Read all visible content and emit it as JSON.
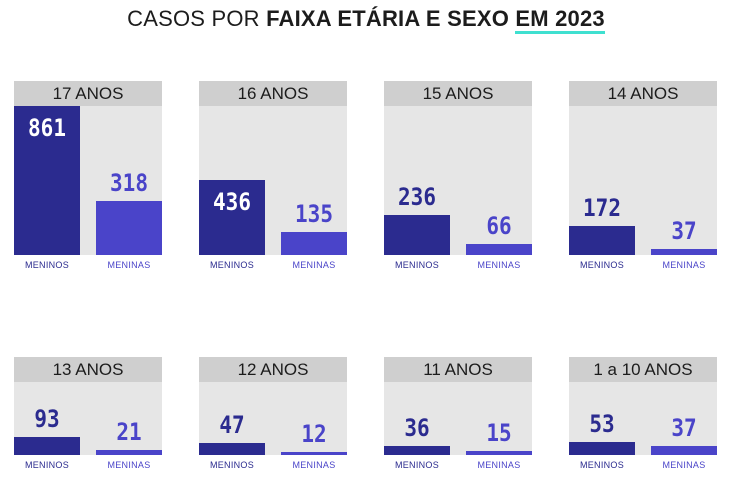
{
  "title": {
    "part1": "CASOS POR ",
    "part2": "FAIXA ETÁRIA E SEXO ",
    "part3": "EM 2023"
  },
  "colors": {
    "meninos": "#2b2b8f",
    "meninas": "#4a44c9",
    "header_bg": "#cfcfcf",
    "panel_bg": "#e6e6e6",
    "underline": "#3fe0d0"
  },
  "chart_data": [
    {
      "type": "bar",
      "title": "17 ANOS",
      "categories": [
        "MENINOS",
        "MENINAS"
      ],
      "values": [
        861,
        318
      ]
    },
    {
      "type": "bar",
      "title": "16 ANOS",
      "categories": [
        "MENINOS",
        "MENINAS"
      ],
      "values": [
        436,
        135
      ]
    },
    {
      "type": "bar",
      "title": "15 ANOS",
      "categories": [
        "MENINOS",
        "MENINAS"
      ],
      "values": [
        236,
        66
      ]
    },
    {
      "type": "bar",
      "title": "14 ANOS",
      "categories": [
        "MENINOS",
        "MENINAS"
      ],
      "values": [
        172,
        37
      ]
    },
    {
      "type": "bar",
      "title": "13 ANOS",
      "categories": [
        "MENINOS",
        "MENINAS"
      ],
      "values": [
        93,
        21
      ]
    },
    {
      "type": "bar",
      "title": "12 ANOS",
      "categories": [
        "MENINOS",
        "MENINAS"
      ],
      "values": [
        47,
        12
      ]
    },
    {
      "type": "bar",
      "title": "11 ANOS",
      "categories": [
        "MENINOS",
        "MENINAS"
      ],
      "values": [
        36,
        15
      ]
    },
    {
      "type": "bar",
      "title": "1 a 10 ANOS",
      "categories": [
        "MENINOS",
        "MENINAS"
      ],
      "values": [
        53,
        37
      ]
    }
  ]
}
